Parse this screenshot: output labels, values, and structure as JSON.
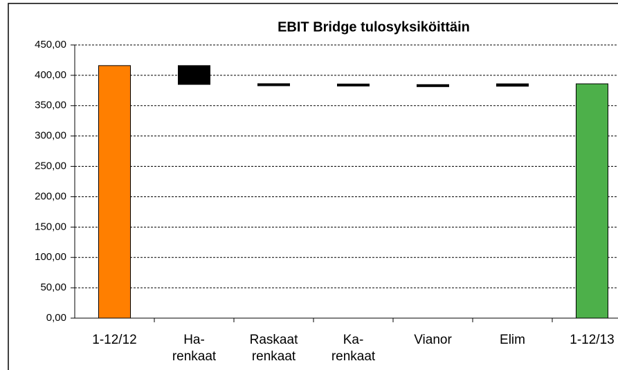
{
  "chart_data": {
    "type": "waterfall",
    "title": "EBIT Bridge tulosyksiköittäin",
    "categories": [
      "1-12/12",
      "Ha-\nrenkaat",
      "Raskaat\nrenkaat",
      "Ka-\nrenkaat",
      "Vianor",
      "Elim",
      "1-12/13"
    ],
    "values": [
      416,
      -31,
      -1,
      0,
      -2,
      4,
      386
    ],
    "colors": [
      "#ff7f00",
      "#000000",
      "#000000",
      "#000000",
      "#000000",
      "#000000",
      "#4db04a"
    ],
    "ylim": [
      0,
      450
    ],
    "yticks": [
      {
        "value": 0,
        "label": "0,00"
      },
      {
        "value": 50,
        "label": "50,00"
      },
      {
        "value": 100,
        "label": "100,00"
      },
      {
        "value": 150,
        "label": "150,00"
      },
      {
        "value": 200,
        "label": "200,00"
      },
      {
        "value": 250,
        "label": "250,00"
      },
      {
        "value": 300,
        "label": "300,00"
      },
      {
        "value": 350,
        "label": "350,00"
      },
      {
        "value": 400,
        "label": "400,00"
      },
      {
        "value": 450,
        "label": "450,00"
      }
    ],
    "grid": true
  }
}
